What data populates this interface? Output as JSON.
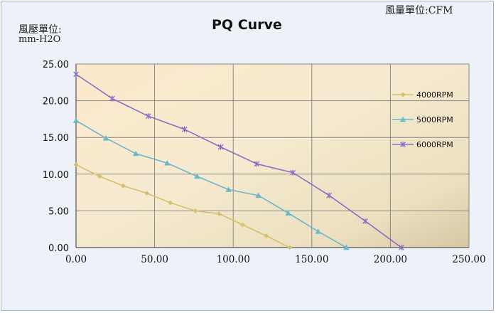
{
  "header": {
    "unit_x": "風量單位:CFM",
    "unit_y_line1": "風壓單位:",
    "unit_y_line2": "mm-H2O"
  },
  "chart_data": {
    "type": "line",
    "title": "PQ Curve",
    "xlim": [
      0,
      250
    ],
    "ylim": [
      0,
      25
    ],
    "x_ticks": [
      "0.00",
      "50.00",
      "100.00",
      "150.00",
      "200.00",
      "250.00"
    ],
    "y_ticks": [
      "0.00",
      "5.00",
      "10.00",
      "15.00",
      "20.00",
      "25.00"
    ],
    "grid": true,
    "legend_position": "right",
    "series": [
      {
        "name": "4000RPM",
        "color": "#d8c06e",
        "marker": "diamond",
        "x": [
          0,
          15,
          30,
          45,
          60,
          76,
          91,
          106,
          121,
          136
        ],
        "y": [
          11.3,
          9.7,
          8.4,
          7.4,
          6.1,
          5.0,
          4.6,
          3.1,
          1.6,
          0.0
        ]
      },
      {
        "name": "5000RPM",
        "color": "#6cb8cc",
        "marker": "triangle",
        "x": [
          0,
          19,
          38,
          58,
          77,
          97,
          116,
          135,
          154,
          172
        ],
        "y": [
          17.3,
          14.9,
          12.8,
          11.5,
          9.7,
          7.9,
          7.1,
          4.7,
          2.2,
          0.0
        ]
      },
      {
        "name": "6000RPM",
        "color": "#8e6dc4",
        "marker": "star",
        "x": [
          0,
          23,
          46,
          69,
          92,
          115,
          138,
          161,
          184,
          207
        ],
        "y": [
          23.6,
          20.3,
          17.9,
          16.1,
          13.7,
          11.4,
          10.2,
          7.1,
          3.6,
          0.0
        ]
      }
    ]
  }
}
